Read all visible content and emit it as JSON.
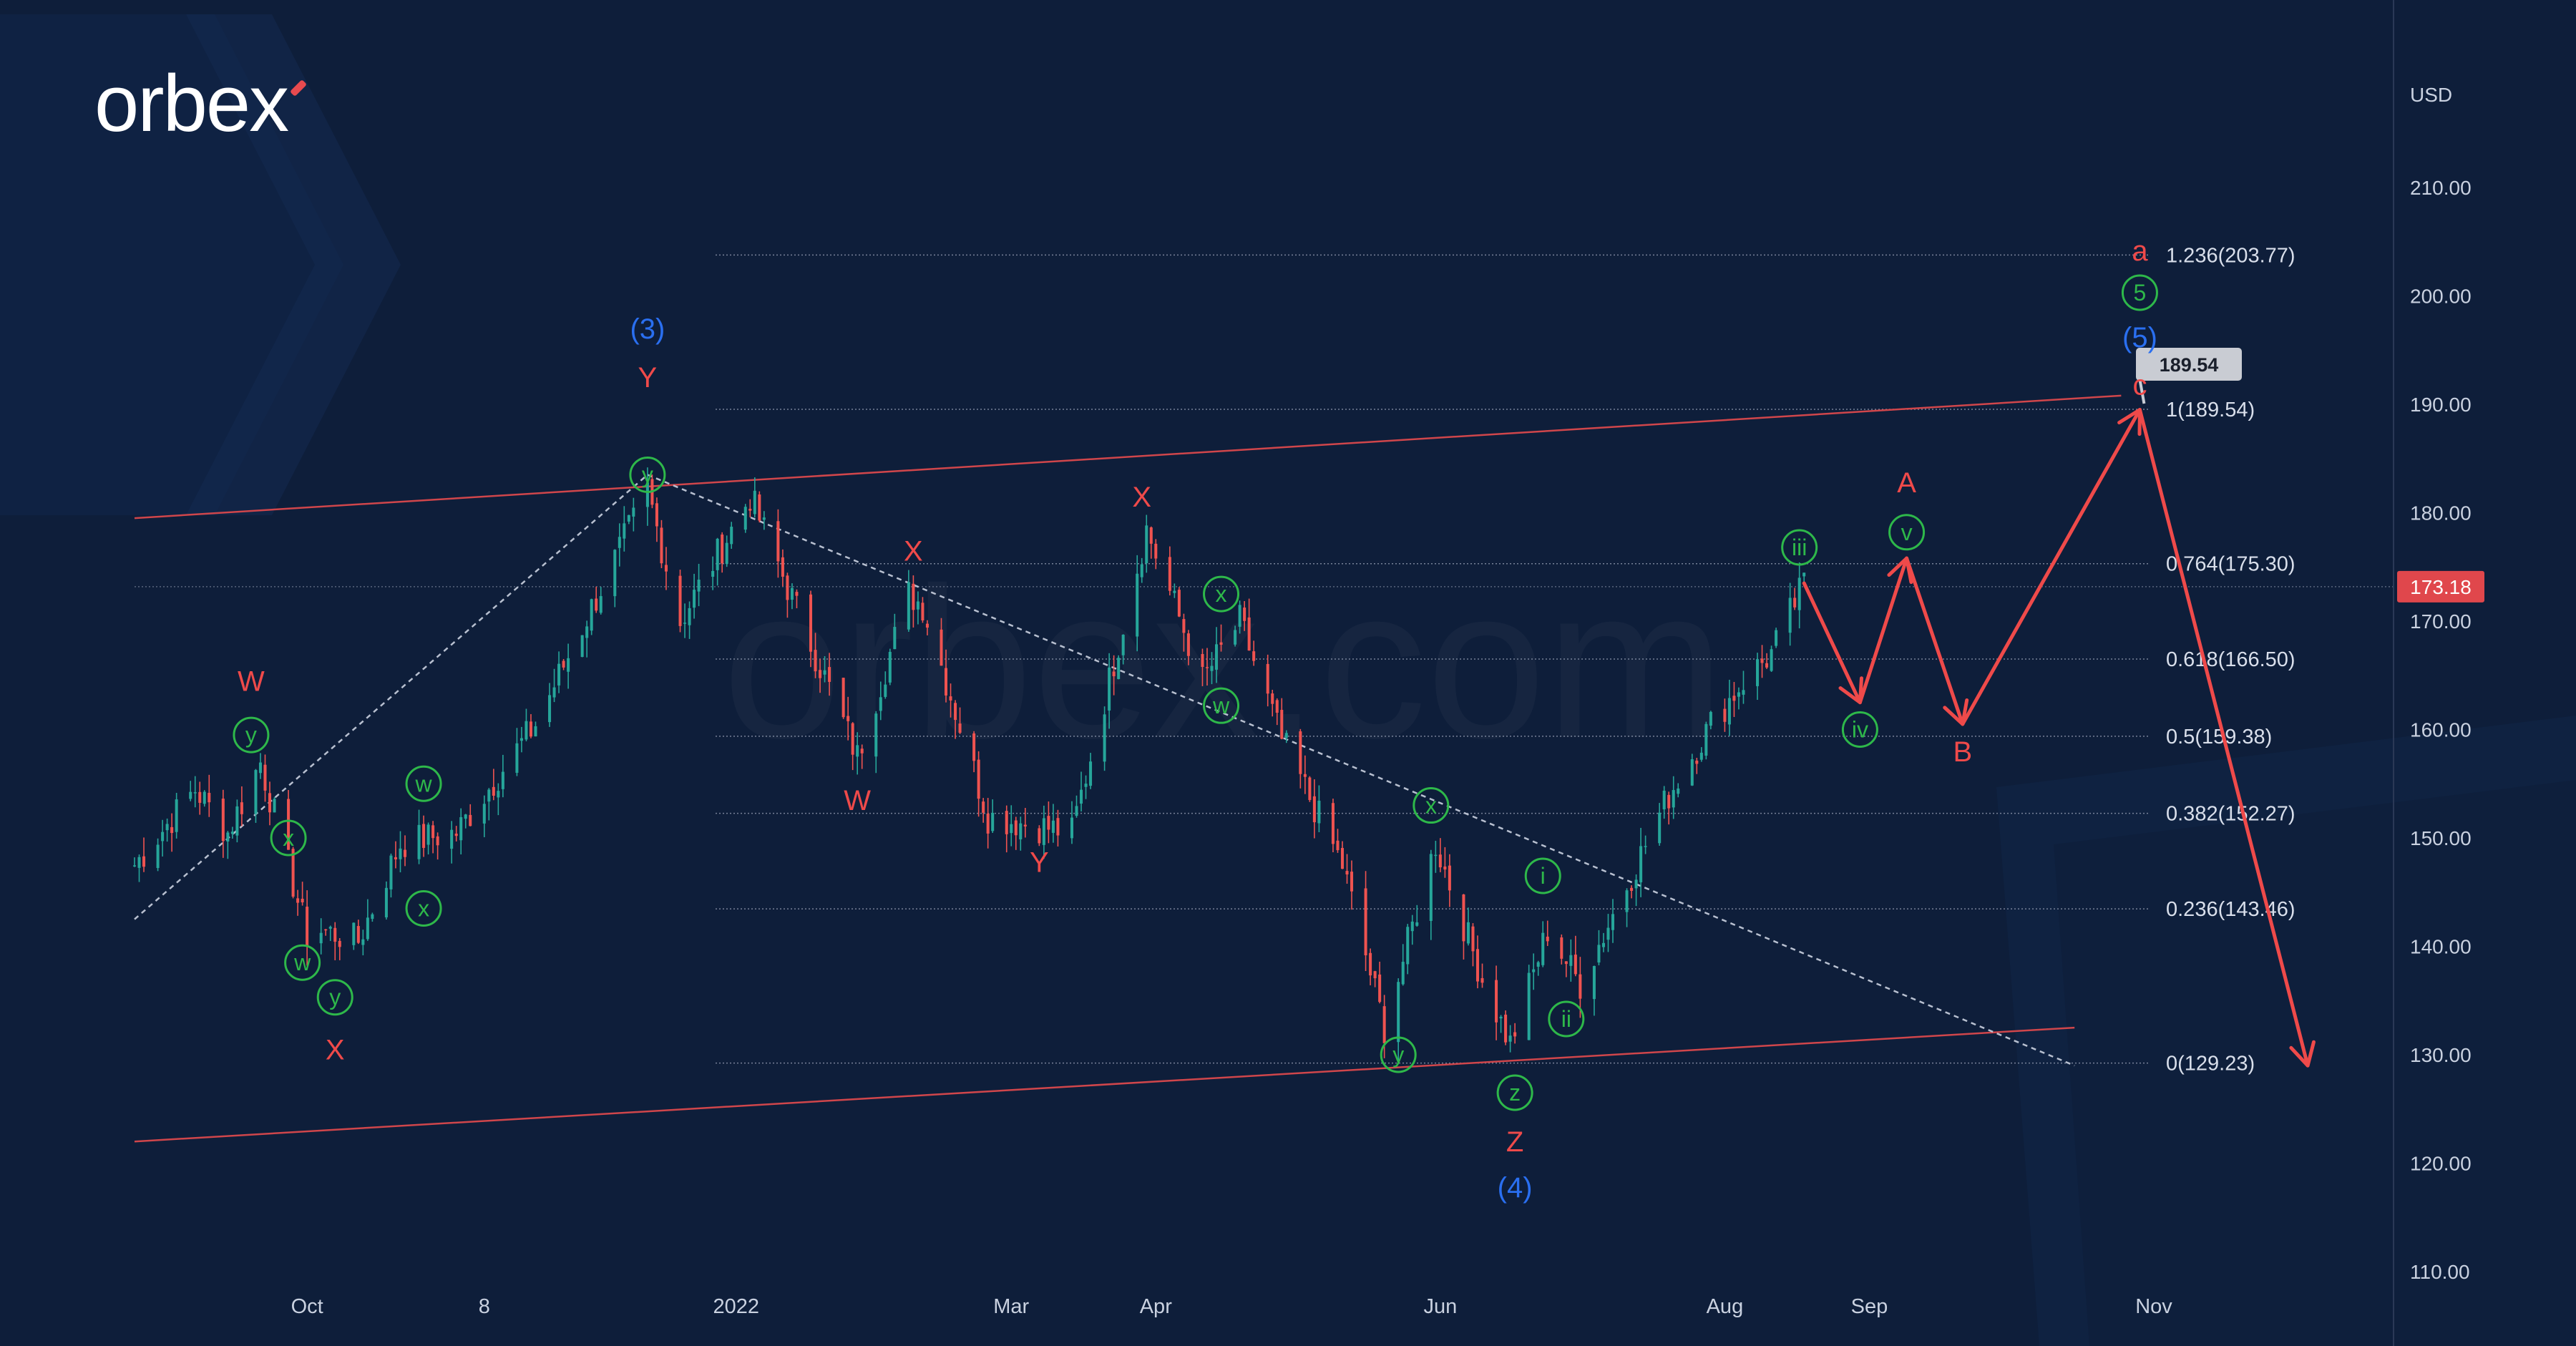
{
  "brand": {
    "logo_text": "orbex",
    "watermark": "orbex.com"
  },
  "colors": {
    "background": "#0e1e3a",
    "candle_up": "#26a69a",
    "candle_down": "#ef5350",
    "red_label": "#ef4a4a",
    "green_label": "#2eb84a",
    "blue_label": "#2a6ff0",
    "channel": "#d0464b",
    "price_tag": "#e0474c",
    "axis_text": "#c9d1e0"
  },
  "chart_data": {
    "type": "candlestick",
    "currency": "USD",
    "ylim": [
      106,
      223
    ],
    "y_ticks": [
      110,
      120,
      130,
      140,
      150,
      160,
      170,
      180,
      190,
      200,
      210
    ],
    "x_ticks": [
      "Oct",
      "8",
      "2022",
      "Mar",
      "Apr",
      "Jun",
      "Aug",
      "Sep",
      "Nov"
    ],
    "last_price": "173.18",
    "projection_target_tag": "189.54",
    "anchor_points": [
      {
        "date": "2021-08-25",
        "y": 147.5
      },
      {
        "date": "2021-09-07",
        "y": 154.5
      },
      {
        "date": "2021-09-14",
        "y": 150.5
      },
      {
        "date": "2021-09-21",
        "y": 157.0
      },
      {
        "date": "2021-10-01",
        "y": 141.0
      },
      {
        "date": "2021-10-04",
        "y": 141.5
      },
      {
        "date": "2021-10-12",
        "y": 140.5
      },
      {
        "date": "2021-10-21",
        "y": 149.5
      },
      {
        "date": "2021-11-02",
        "y": 150.5
      },
      {
        "date": "2021-11-19",
        "y": 160.5
      },
      {
        "date": "2021-12-13",
        "y": 182.0
      },
      {
        "date": "2021-12-20",
        "y": 170.0
      },
      {
        "date": "2022-01-04",
        "y": 181.5
      },
      {
        "date": "2022-01-27",
        "y": 157.5
      },
      {
        "date": "2022-02-07",
        "y": 172.5
      },
      {
        "date": "2022-02-10",
        "y": 171.5
      },
      {
        "date": "2022-02-24",
        "y": 152.0
      },
      {
        "date": "2022-03-14",
        "y": 150.5
      },
      {
        "date": "2022-03-30",
        "y": 178.5
      },
      {
        "date": "2022-04-11",
        "y": 164.5
      },
      {
        "date": "2022-04-19",
        "y": 170.0
      },
      {
        "date": "2022-04-28",
        "y": 159.0
      },
      {
        "date": "2022-05-11",
        "y": 147.5
      },
      {
        "date": "2022-05-20",
        "y": 132.5
      },
      {
        "date": "2022-05-31",
        "y": 149.5
      },
      {
        "date": "2022-06-10",
        "y": 137.0
      },
      {
        "date": "2022-06-16",
        "y": 131.0
      },
      {
        "date": "2022-06-24",
        "y": 141.5
      },
      {
        "date": "2022-07-01",
        "y": 136.5
      },
      {
        "date": "2022-07-20",
        "y": 154.0
      },
      {
        "date": "2022-07-29",
        "y": 160.5
      },
      {
        "date": "2022-08-05",
        "y": 164.5
      },
      {
        "date": "2022-08-11",
        "y": 167.0
      },
      {
        "date": "2022-08-18",
        "y": 173.5
      }
    ],
    "projection": [
      {
        "date": "2022-08-18",
        "y": 173.5
      },
      {
        "date": "2022-08-30",
        "y": 162.5
      },
      {
        "date": "2022-09-09",
        "y": 175.8
      },
      {
        "date": "2022-09-21",
        "y": 160.5
      },
      {
        "date": "2022-10-29",
        "y": 189.5
      },
      {
        "date": "2022-12-04",
        "y": 129.0
      }
    ],
    "fibonacci": [
      {
        "label": "1.236(203.77)",
        "value": 203.77
      },
      {
        "label": "1(189.54)",
        "value": 189.54
      },
      {
        "label": "0.764(175.30)",
        "value": 175.3
      },
      {
        "label": "0.618(166.50)",
        "value": 166.5
      },
      {
        "label": "0.5(159.38)",
        "value": 159.38
      },
      {
        "label": "0.382(152.27)",
        "value": 152.27
      },
      {
        "label": "0.236(143.46)",
        "value": 143.46
      },
      {
        "label": "0(129.23)",
        "value": 129.23
      }
    ],
    "channel_lines": [
      {
        "name": "upper",
        "from": {
          "date": "2021-08-25",
          "y": 179.5
        },
        "to": {
          "date": "2022-10-25",
          "y": 190.8
        }
      },
      {
        "name": "lower",
        "from": {
          "date": "2021-08-25",
          "y": 122.0
        },
        "to": {
          "date": "2022-10-15",
          "y": 132.5
        }
      },
      {
        "name": "dashed-support",
        "from": {
          "date": "2021-08-25",
          "y": 142.5
        },
        "to": {
          "date": "2021-12-13",
          "y": 183.5
        },
        "dashed": true
      },
      {
        "name": "dashed-trend",
        "from": {
          "date": "2021-12-13",
          "y": 183.5
        },
        "to": {
          "date": "2022-10-15",
          "y": 129.0
        },
        "dashed": true
      }
    ],
    "wave_labels": [
      {
        "text": "W",
        "date": "2021-09-19",
        "y": 164.5,
        "color": "red"
      },
      {
        "text": "y",
        "date": "2021-09-19",
        "y": 159.5,
        "color": "green",
        "circle": true
      },
      {
        "text": "x",
        "date": "2021-09-27",
        "y": 150.0,
        "color": "green",
        "circle": true
      },
      {
        "text": "w",
        "date": "2021-09-30",
        "y": 138.5,
        "color": "green",
        "circle": true
      },
      {
        "text": "y",
        "date": "2021-10-07",
        "y": 135.3,
        "color": "green",
        "circle": true
      },
      {
        "text": "X",
        "date": "2021-10-07",
        "y": 130.5,
        "color": "red"
      },
      {
        "text": "w",
        "date": "2021-10-26",
        "y": 155.0,
        "color": "green",
        "circle": true
      },
      {
        "text": "x",
        "date": "2021-10-26",
        "y": 143.5,
        "color": "green",
        "circle": true
      },
      {
        "text": "(3)",
        "date": "2021-12-13",
        "y": 197.0,
        "color": "blue"
      },
      {
        "text": "Y",
        "date": "2021-12-13",
        "y": 192.5,
        "color": "red"
      },
      {
        "text": "y",
        "date": "2021-12-13",
        "y": 183.5,
        "color": "green",
        "circle": true
      },
      {
        "text": "W",
        "date": "2022-01-27",
        "y": 153.5,
        "color": "red"
      },
      {
        "text": "X",
        "date": "2022-02-08",
        "y": 176.5,
        "color": "red"
      },
      {
        "text": "Y",
        "date": "2022-03-07",
        "y": 147.8,
        "color": "red"
      },
      {
        "text": "X",
        "date": "2022-03-29",
        "y": 181.5,
        "color": "red"
      },
      {
        "text": "x",
        "date": "2022-04-15",
        "y": 172.5,
        "color": "green",
        "circle": true
      },
      {
        "text": "w",
        "date": "2022-04-15",
        "y": 162.2,
        "color": "green",
        "circle": true
      },
      {
        "text": "x",
        "date": "2022-05-30",
        "y": 153.0,
        "color": "green",
        "circle": true
      },
      {
        "text": "y",
        "date": "2022-05-23",
        "y": 130.0,
        "color": "green",
        "circle": true
      },
      {
        "text": "i",
        "date": "2022-06-23",
        "y": 146.5,
        "color": "green",
        "circle": true
      },
      {
        "text": "ii",
        "date": "2022-06-28",
        "y": 133.3,
        "color": "green",
        "circle": true
      },
      {
        "text": "z",
        "date": "2022-06-17",
        "y": 126.5,
        "color": "green",
        "circle": true
      },
      {
        "text": "Z",
        "date": "2022-06-17",
        "y": 122.0,
        "color": "red"
      },
      {
        "text": "(4)",
        "date": "2022-06-17",
        "y": 117.8,
        "color": "blue"
      },
      {
        "text": "iii",
        "date": "2022-08-17",
        "y": 176.8,
        "color": "green",
        "circle": true
      },
      {
        "text": "iv",
        "date": "2022-08-30",
        "y": 160.0,
        "color": "green",
        "circle": true
      },
      {
        "text": "v",
        "date": "2022-09-09",
        "y": 178.2,
        "color": "green",
        "circle": true
      },
      {
        "text": "A",
        "date": "2022-09-09",
        "y": 182.8,
        "color": "red"
      },
      {
        "text": "B",
        "date": "2022-09-21",
        "y": 158.0,
        "color": "red"
      },
      {
        "text": "a",
        "date": "2022-10-29",
        "y": 204.2,
        "color": "red"
      },
      {
        "text": "5",
        "date": "2022-10-29",
        "y": 200.3,
        "color": "green",
        "circle": true
      },
      {
        "text": "(5)",
        "date": "2022-10-29",
        "y": 196.2,
        "color": "blue"
      },
      {
        "text": "c",
        "date": "2022-10-29",
        "y": 191.8,
        "color": "red"
      }
    ]
  }
}
